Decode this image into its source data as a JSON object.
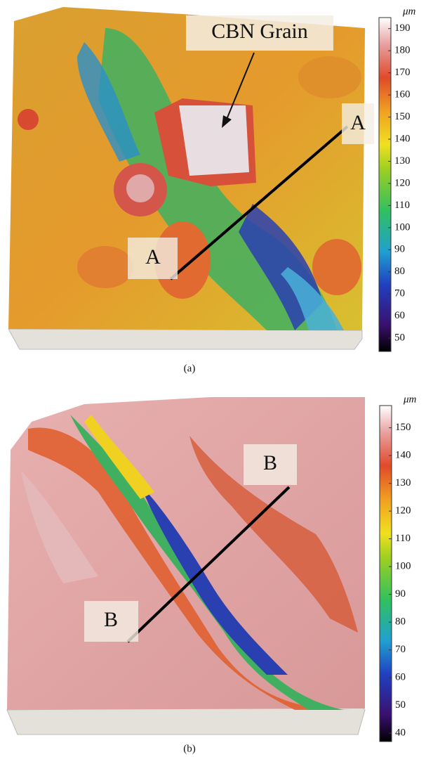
{
  "panels": [
    {
      "caption": "(a)",
      "annotations": {
        "grain": "CBN Grain",
        "section_start": "A",
        "section_end": "A"
      },
      "colorbar": {
        "unit": "μm",
        "lim": [
          44,
          195
        ],
        "ticks": [
          50,
          60,
          70,
          80,
          90,
          100,
          110,
          120,
          130,
          140,
          150,
          160,
          170,
          180,
          190
        ]
      }
    },
    {
      "caption": "(b)",
      "annotations": {
        "section_start": "B",
        "section_end": "B"
      },
      "colorbar": {
        "unit": "μm",
        "lim": [
          37,
          158
        ],
        "ticks": [
          40,
          50,
          60,
          70,
          80,
          90,
          100,
          110,
          120,
          130,
          140,
          150
        ]
      }
    }
  ]
}
